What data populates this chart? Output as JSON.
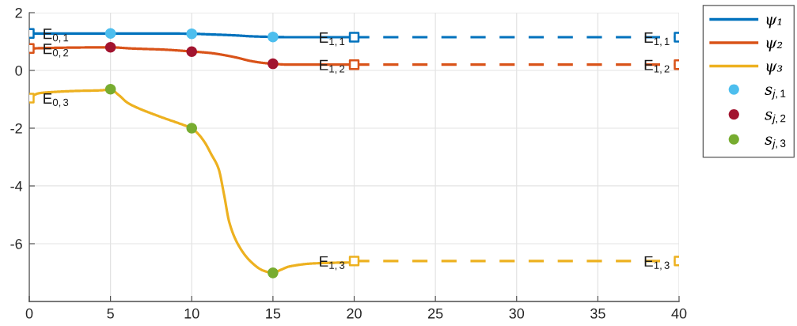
{
  "chart_data": {
    "type": "line",
    "xlim": [
      0,
      40
    ],
    "ylim": [
      -8,
      2
    ],
    "xticks": [
      0,
      5,
      10,
      15,
      20,
      25,
      30,
      35,
      40
    ],
    "yticks": [
      -6,
      -4,
      -2,
      0,
      2
    ],
    "grid": true,
    "legend": "right",
    "series": [
      {
        "name": "ψ₁",
        "color": "#0072bd",
        "line_style": "solid",
        "x": [
          0,
          2.5,
          5,
          7.5,
          10,
          11,
          12,
          12.8,
          13.7,
          15,
          16,
          17.6,
          20
        ],
        "values": [
          1.28,
          1.28,
          1.28,
          1.28,
          1.27,
          1.25,
          1.23,
          1.21,
          1.18,
          1.16,
          1.15,
          1.15,
          1.15
        ]
      },
      {
        "name": "ψ₂",
        "color": "#d95319",
        "line_style": "solid",
        "x": [
          0,
          2.5,
          5,
          6.3,
          8.3,
          9.9,
          11.2,
          12,
          12.8,
          13.6,
          14.4,
          15,
          16,
          17.6,
          20
        ],
        "values": [
          0.76,
          0.79,
          0.8,
          0.76,
          0.72,
          0.66,
          0.6,
          0.53,
          0.44,
          0.33,
          0.26,
          0.23,
          0.2,
          0.2,
          0.2
        ]
      },
      {
        "name": "ψ₃",
        "color": "#edb120",
        "line_style": "solid",
        "x": [
          0,
          0.6,
          1.4,
          2.9,
          4.4,
          5,
          5.5,
          6,
          6.3,
          7.9,
          9.5,
          10,
          10.4,
          10.8,
          11.2,
          11.65,
          12,
          12.3,
          12.8,
          13.6,
          14.4,
          15,
          15.5,
          16,
          17.6,
          20
        ],
        "values": [
          -0.96,
          -0.79,
          -0.75,
          -0.71,
          -0.69,
          -0.66,
          -0.85,
          -1.1,
          -1.2,
          -1.57,
          -1.89,
          -2.0,
          -2.2,
          -2.49,
          -2.9,
          -3.4,
          -4.33,
          -5.23,
          -5.97,
          -6.6,
          -6.93,
          -7.01,
          -6.9,
          -6.79,
          -6.68,
          -6.65
        ]
      },
      {
        "color": "#0072bd",
        "line_style": "dashed",
        "x": [
          20,
          40
        ],
        "values": [
          1.15,
          1.15
        ]
      },
      {
        "color": "#d95319",
        "line_style": "dashed",
        "x": [
          20,
          40
        ],
        "values": [
          0.2,
          0.2
        ]
      },
      {
        "color": "#edb120",
        "line_style": "dashed",
        "x": [
          20,
          40
        ],
        "values": [
          -6.6,
          -6.6
        ]
      },
      {
        "type": "scatter",
        "marker": "square",
        "color": "#0072bd",
        "x": [
          0,
          20,
          40
        ],
        "values": [
          1.28,
          1.15,
          1.15
        ]
      },
      {
        "type": "scatter",
        "marker": "square",
        "color": "#d95319",
        "x": [
          0,
          20,
          40
        ],
        "values": [
          0.76,
          0.2,
          0.2
        ]
      },
      {
        "type": "scatter",
        "marker": "square",
        "color": "#edb120",
        "x": [
          0,
          20,
          40
        ],
        "values": [
          -0.96,
          -6.6,
          -6.6
        ]
      },
      {
        "name": "s$_{j,1}$",
        "type": "scatter",
        "marker": "circle",
        "color": "#4dbeee",
        "x": [
          5,
          10,
          15
        ],
        "values": [
          1.28,
          1.27,
          1.16
        ]
      },
      {
        "name": "s$_{j,2}$",
        "type": "scatter",
        "marker": "circle",
        "color": "#a2142f",
        "x": [
          5,
          10,
          15
        ],
        "values": [
          0.8,
          0.65,
          0.23
        ]
      },
      {
        "name": "s$_{j,3}$",
        "type": "scatter",
        "marker": "circle",
        "color": "#77ac30",
        "x": [
          5,
          10,
          15
        ],
        "values": [
          -0.65,
          -2.0,
          -7.01
        ]
      }
    ],
    "annotations": [
      {
        "text": "E$_{0,1}$",
        "x": 0,
        "y": 1.28
      },
      {
        "text": "E$_{0,2}$",
        "x": 0,
        "y": 0.76
      },
      {
        "text": "E$_{0,3}$",
        "x": 0,
        "y": -0.96
      },
      {
        "text": "E$_{1,1}$",
        "x": 20,
        "y": 1.15
      },
      {
        "text": "E$_{1,2}$",
        "x": 20,
        "y": 0.2
      },
      {
        "text": "E$_{1,3}$",
        "x": 20,
        "y": -6.6
      },
      {
        "text": "E$_{1,1}$",
        "x": 40,
        "y": 1.15
      },
      {
        "text": "E$_{1,2}$",
        "x": 40,
        "y": 0.2
      },
      {
        "text": "E$_{1,3}$",
        "x": 40,
        "y": -6.6
      }
    ]
  }
}
